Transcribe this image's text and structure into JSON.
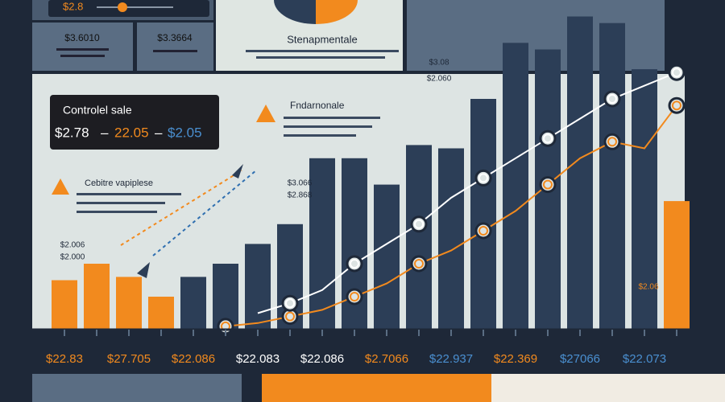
{
  "panels": {
    "top_badge": "$2.8",
    "left_stats": [
      "$3.6010",
      "$3.3664"
    ],
    "center_title": "Stenapmentale",
    "sale_title": "Controlel sale",
    "sale_values": [
      "$2.78",
      "22.05",
      "$2.05"
    ],
    "note_1": "Fndarnonale",
    "note_2": "Cebitre vapiplese",
    "small_labels": [
      "$3.066",
      "$2.868",
      "$2.006",
      "$2.000",
      "$3.08",
      "$2.060",
      "$2.06"
    ]
  },
  "chart_data": {
    "type": "bar",
    "categories": [
      "$22.83",
      null,
      "$27.705",
      null,
      "$22.086",
      null,
      "$22.083",
      null,
      "$22.086",
      null,
      "$2.7066",
      null,
      "$22.937",
      null,
      "$22.369",
      null,
      "$27066",
      null,
      "$22.073",
      null
    ],
    "label_colors": [
      "#f28a1e",
      null,
      "#f28a1e",
      null,
      "#f28a1e",
      null,
      "#ffffff",
      null,
      "#ffffff",
      null,
      "#f28a1e",
      null,
      "#4a8fd0",
      null,
      "#f28a1e",
      null,
      "#4a8fd0",
      null,
      "#4a8fd0",
      null
    ],
    "ylim": [
      0,
      100
    ],
    "series": [
      {
        "kind": "bar",
        "color": "#f28a1e",
        "values": [
          15,
          20,
          16,
          10,
          null,
          null,
          null,
          null,
          null,
          null,
          null,
          null,
          null,
          null,
          null,
          null,
          null,
          null,
          null,
          39
        ]
      },
      {
        "kind": "bar",
        "color": "#2c3e57",
        "values": [
          null,
          null,
          null,
          null,
          16,
          20,
          26,
          32,
          52,
          52,
          44,
          56,
          55,
          70,
          87,
          85,
          95,
          93,
          79,
          null
        ]
      },
      {
        "kind": "line",
        "color": "#f28a1e",
        "values": [
          null,
          null,
          null,
          null,
          null,
          1,
          2,
          4,
          6,
          10,
          14,
          20,
          24,
          30,
          36,
          44,
          52,
          57,
          55,
          68
        ]
      },
      {
        "kind": "line",
        "color": "#ffffff",
        "values": [
          null,
          null,
          null,
          null,
          null,
          null,
          5,
          8,
          12,
          20,
          26,
          32,
          40,
          46,
          52,
          58,
          64,
          70,
          74,
          78
        ]
      }
    ]
  }
}
